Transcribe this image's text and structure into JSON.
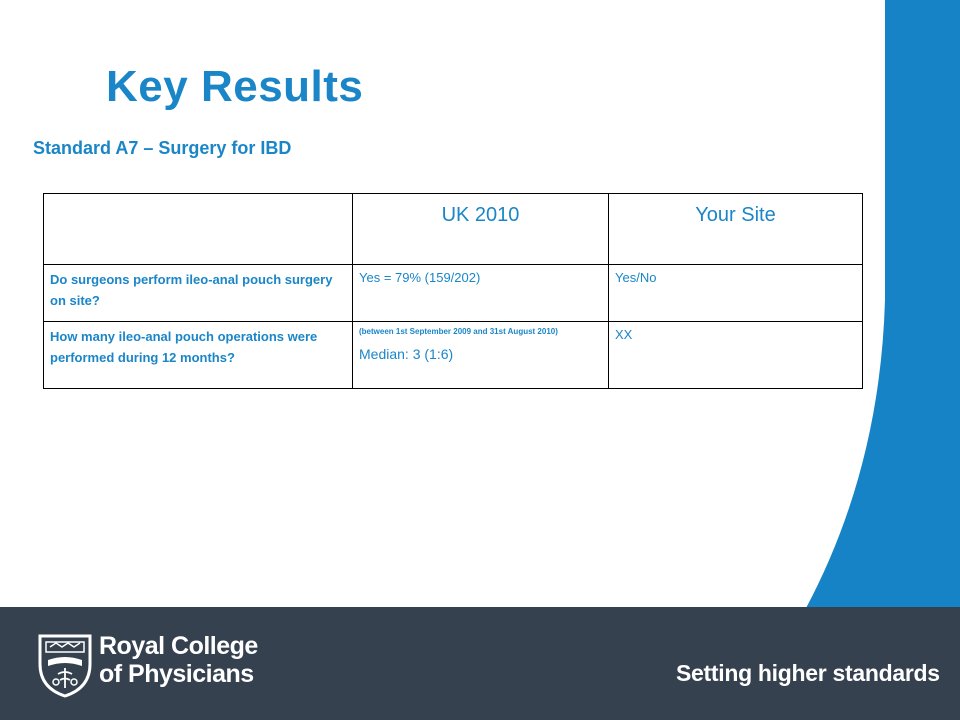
{
  "slide": {
    "title": "Key Results",
    "subtitle": "Standard A7 – Surgery for IBD"
  },
  "table": {
    "headers": [
      "",
      "UK 2010",
      "Your Site"
    ],
    "rows": [
      {
        "question": "Do surgeons perform ileo-anal pouch surgery on site?",
        "uk_value": "Yes = 79% (159/202)",
        "site_value": "Yes/No"
      },
      {
        "question": "How many ileo-anal pouch operations were performed during 12 months?",
        "uk_note": "(between 1st September 2009 and 31st August 2010)",
        "uk_value": "Median: 3 (1:6)",
        "site_value": "XX"
      }
    ]
  },
  "footer": {
    "org_line1": "Royal College",
    "org_line2": "of Physicians",
    "tagline": "Setting higher standards",
    "logo_icon": "rcp-crest-icon"
  },
  "colors": {
    "accent": "#1a86c8",
    "side_band": "#1683c6",
    "footer_bg": "#36414f"
  }
}
